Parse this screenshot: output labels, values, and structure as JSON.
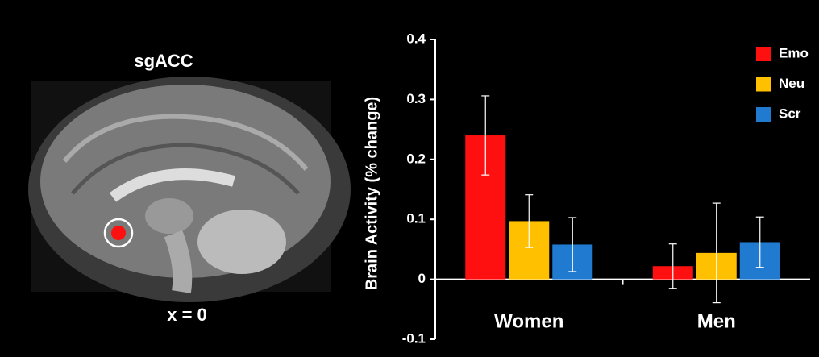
{
  "brain_panel": {
    "title": "sgACC",
    "caption": "x = 0"
  },
  "chart_data": {
    "type": "bar",
    "y_label": "Brain Activity (% change)",
    "categories": [
      "Women",
      "Men"
    ],
    "series": [
      {
        "name": "Emo",
        "color": "#ff1010",
        "values": [
          0.24,
          0.022
        ],
        "errors": [
          0.066,
          0.037
        ]
      },
      {
        "name": "Neu",
        "color": "#ffc000",
        "values": [
          0.097,
          0.044
        ],
        "errors": [
          0.044,
          0.083
        ]
      },
      {
        "name": "Scr",
        "color": "#1f7ad0",
        "values": [
          0.058,
          0.062
        ],
        "errors": [
          0.045,
          0.042
        ]
      }
    ],
    "ylim": [
      -0.1,
      0.4
    ],
    "yticks": [
      -0.1,
      0,
      0.1,
      0.2,
      0.3,
      0.4
    ],
    "legend": "upper right"
  }
}
